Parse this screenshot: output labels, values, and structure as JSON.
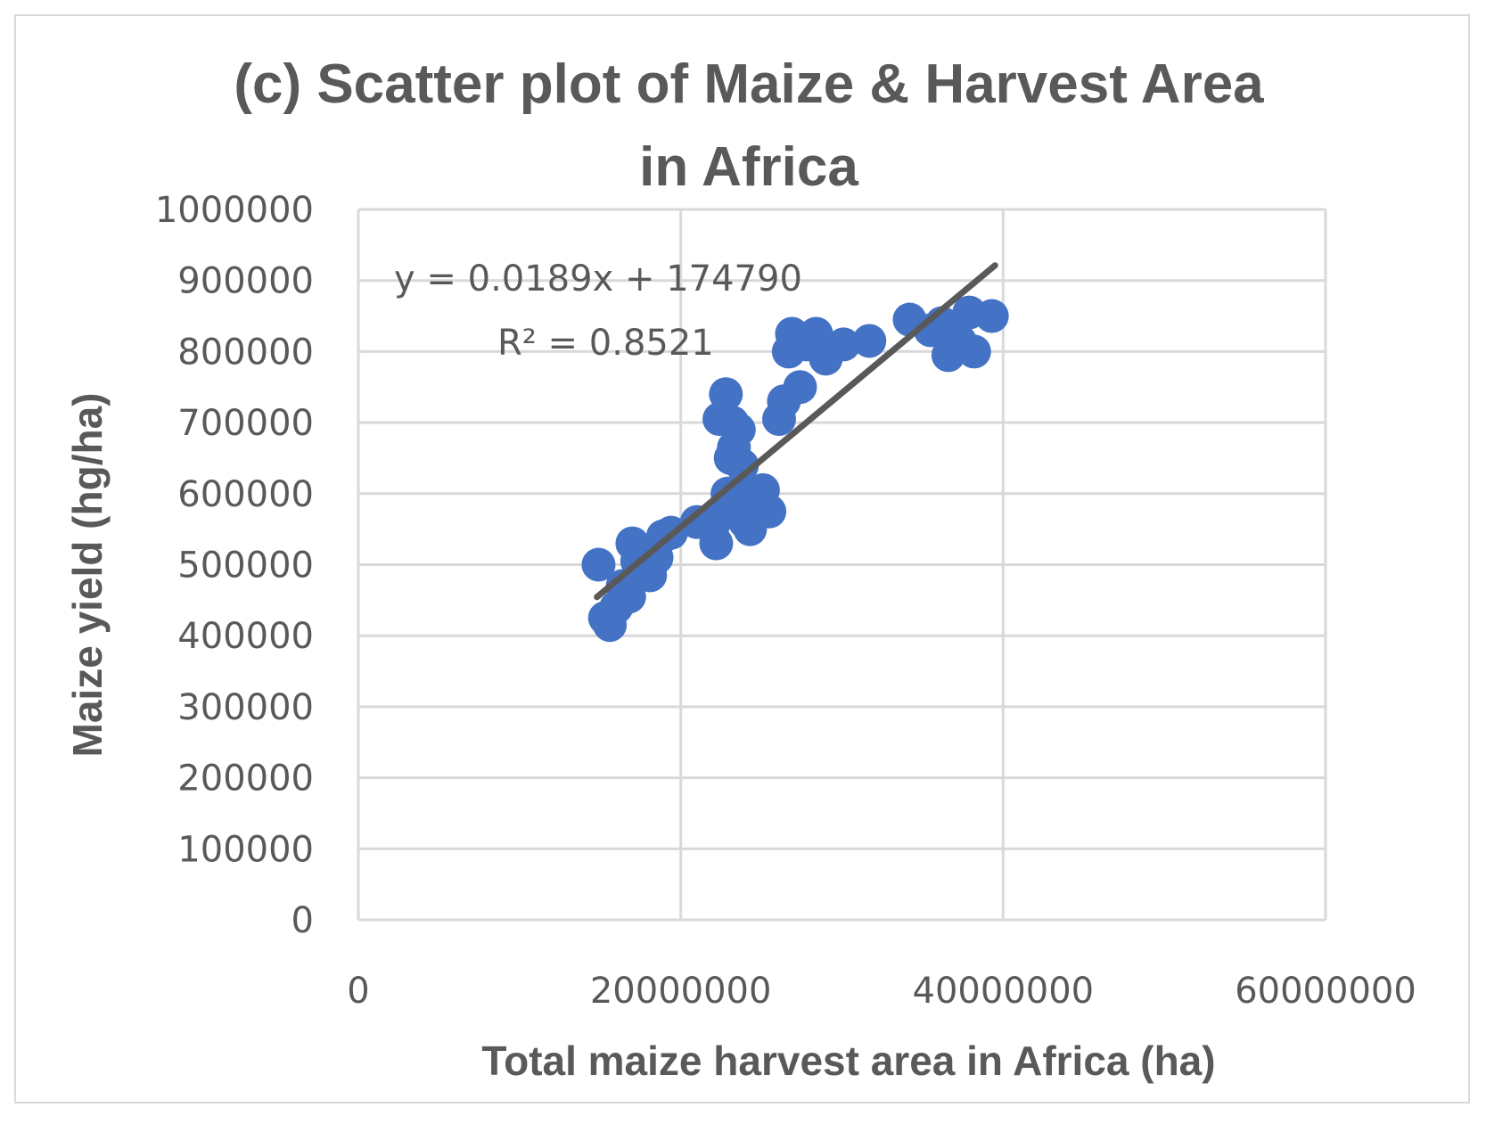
{
  "chart_data": {
    "type": "scatter",
    "title_lines": [
      "(c) Scatter plot of Maize & Harvest Area",
      "in Africa"
    ],
    "xlabel": "Total maize harvest area in Africa (ha)",
    "ylabel": "Maize yield (hg/ha)",
    "xlim": [
      0,
      60000000
    ],
    "ylim": [
      0,
      1000000
    ],
    "x_ticks": [
      0,
      20000000,
      40000000,
      60000000
    ],
    "x_tick_labels": [
      "0",
      "20000000",
      "40000000",
      "60000000"
    ],
    "y_ticks": [
      0,
      100000,
      200000,
      300000,
      400000,
      500000,
      600000,
      700000,
      800000,
      900000,
      1000000
    ],
    "y_tick_labels": [
      "0",
      "100000",
      "200000",
      "300000",
      "400000",
      "500000",
      "600000",
      "700000",
      "800000",
      "900000",
      "1000000"
    ],
    "grid": true,
    "marker_color": "#4472C4",
    "trendline_color": "#595959",
    "trendline": {
      "slope": 0.0189,
      "intercept": 174790,
      "x_range": [
        14800000,
        39500000
      ],
      "equation_label": "y = 0.0189x + 174790",
      "r2_label": "R² = 0.8521"
    },
    "series": [
      {
        "points": [
          [
            14900000,
            500000
          ],
          [
            15300000,
            425000
          ],
          [
            15600000,
            415000
          ],
          [
            16000000,
            440000
          ],
          [
            16400000,
            470000
          ],
          [
            16800000,
            455000
          ],
          [
            17000000,
            530000
          ],
          [
            17300000,
            505000
          ],
          [
            17700000,
            520000
          ],
          [
            18100000,
            485000
          ],
          [
            18500000,
            510000
          ],
          [
            18900000,
            540000
          ],
          [
            19400000,
            545000
          ],
          [
            21000000,
            560000
          ],
          [
            22000000,
            555000
          ],
          [
            22200000,
            530000
          ],
          [
            22600000,
            575000
          ],
          [
            22900000,
            600000
          ],
          [
            23100000,
            650000
          ],
          [
            22400000,
            705000
          ],
          [
            22800000,
            740000
          ],
          [
            23200000,
            700000
          ],
          [
            23600000,
            690000
          ],
          [
            23300000,
            665000
          ],
          [
            23800000,
            640000
          ],
          [
            24200000,
            600000
          ],
          [
            24000000,
            560000
          ],
          [
            24300000,
            550000
          ],
          [
            24700000,
            580000
          ],
          [
            25100000,
            605000
          ],
          [
            25500000,
            575000
          ],
          [
            26100000,
            705000
          ],
          [
            26400000,
            730000
          ],
          [
            26700000,
            800000
          ],
          [
            26900000,
            825000
          ],
          [
            27400000,
            750000
          ],
          [
            27800000,
            810000
          ],
          [
            28400000,
            825000
          ],
          [
            29000000,
            790000
          ],
          [
            30100000,
            810000
          ],
          [
            31700000,
            815000
          ],
          [
            34200000,
            845000
          ],
          [
            35500000,
            830000
          ],
          [
            36200000,
            840000
          ],
          [
            36600000,
            795000
          ],
          [
            37300000,
            815000
          ],
          [
            37900000,
            855000
          ],
          [
            38200000,
            800000
          ],
          [
            39300000,
            850000
          ]
        ]
      }
    ]
  }
}
